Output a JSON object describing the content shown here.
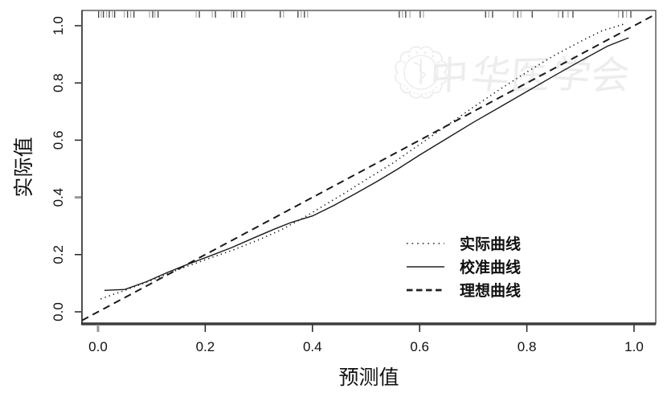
{
  "figure": {
    "kind": "calibration-curve-plot",
    "background": "#ffffff"
  },
  "colors": {
    "curve": "#1a1a1a",
    "box_line": "#333333",
    "bottom_axis": "#3d3d3d",
    "tick_label": "#111111",
    "rug_dark": "#3f3f3f",
    "rug_light": "#b0b0b0",
    "watermark": "#ededed"
  },
  "watermark": {
    "emblem": "chinese-medical-association-emblem",
    "text": "中华医学会"
  },
  "chart_data": {
    "type": "line",
    "title": "",
    "xlabel": "预测值",
    "ylabel": "实际值",
    "xlim": [
      0,
      1
    ],
    "ylim": [
      0,
      1
    ],
    "x_tick_labels": [
      "0.0",
      "0.2",
      "0.4",
      "0.6",
      "0.8",
      "1.0"
    ],
    "y_tick_labels": [
      "0.0",
      "0.2",
      "0.4",
      "0.6",
      "0.8",
      "1.0"
    ],
    "x_tick_values": [
      0,
      0.2,
      0.4,
      0.6,
      0.8,
      1.0
    ],
    "y_tick_values": [
      0,
      0.2,
      0.4,
      0.6,
      0.8,
      1.0
    ],
    "grid": false,
    "legend_position": "inside-lower-right",
    "series": [
      {
        "name": "实际曲线",
        "style": "dotted",
        "x": [
          0.005,
          0.05,
          0.1,
          0.15,
          0.2,
          0.25,
          0.3,
          0.34,
          0.38,
          0.42,
          0.46,
          0.5,
          0.55,
          0.6,
          0.65,
          0.7,
          0.75,
          0.8,
          0.85,
          0.9,
          0.94,
          0.98
        ],
        "y": [
          0.045,
          0.075,
          0.11,
          0.148,
          0.182,
          0.215,
          0.252,
          0.285,
          0.325,
          0.37,
          0.415,
          0.462,
          0.52,
          0.585,
          0.65,
          0.715,
          0.778,
          0.838,
          0.895,
          0.945,
          0.982,
          1.005
        ]
      },
      {
        "name": "校准曲线",
        "style": "solid",
        "x": [
          0.012,
          0.05,
          0.09,
          0.13,
          0.17,
          0.21,
          0.25,
          0.29,
          0.33,
          0.36,
          0.4,
          0.44,
          0.48,
          0.52,
          0.56,
          0.6,
          0.65,
          0.7,
          0.75,
          0.8,
          0.85,
          0.9,
          0.95,
          0.99
        ],
        "y": [
          0.075,
          0.078,
          0.105,
          0.138,
          0.168,
          0.196,
          0.225,
          0.258,
          0.29,
          0.312,
          0.335,
          0.372,
          0.413,
          0.455,
          0.5,
          0.548,
          0.605,
          0.662,
          0.716,
          0.77,
          0.824,
          0.877,
          0.928,
          0.958
        ]
      },
      {
        "name": "理想曲线",
        "style": "dashed",
        "x": [
          -0.03,
          1.04
        ],
        "y": [
          -0.03,
          1.04
        ]
      }
    ],
    "rug": {
      "position": "top",
      "values": [
        0.001,
        0.006,
        0.01,
        0.016,
        0.021,
        0.027,
        0.031,
        0.049,
        0.055,
        0.061,
        0.067,
        0.096,
        0.102,
        0.106,
        0.112,
        0.183,
        0.189,
        0.213,
        0.219,
        0.249,
        0.253,
        0.259,
        0.268,
        0.274,
        0.34,
        0.346,
        0.373,
        0.379,
        0.385,
        0.391,
        0.562,
        0.568,
        0.574,
        0.582,
        0.601,
        0.607,
        0.723,
        0.729,
        0.736,
        0.775,
        0.783,
        0.789,
        0.81,
        0.859,
        0.867,
        0.877,
        0.886,
        0.971,
        0.979,
        0.986,
        0.994
      ]
    }
  }
}
